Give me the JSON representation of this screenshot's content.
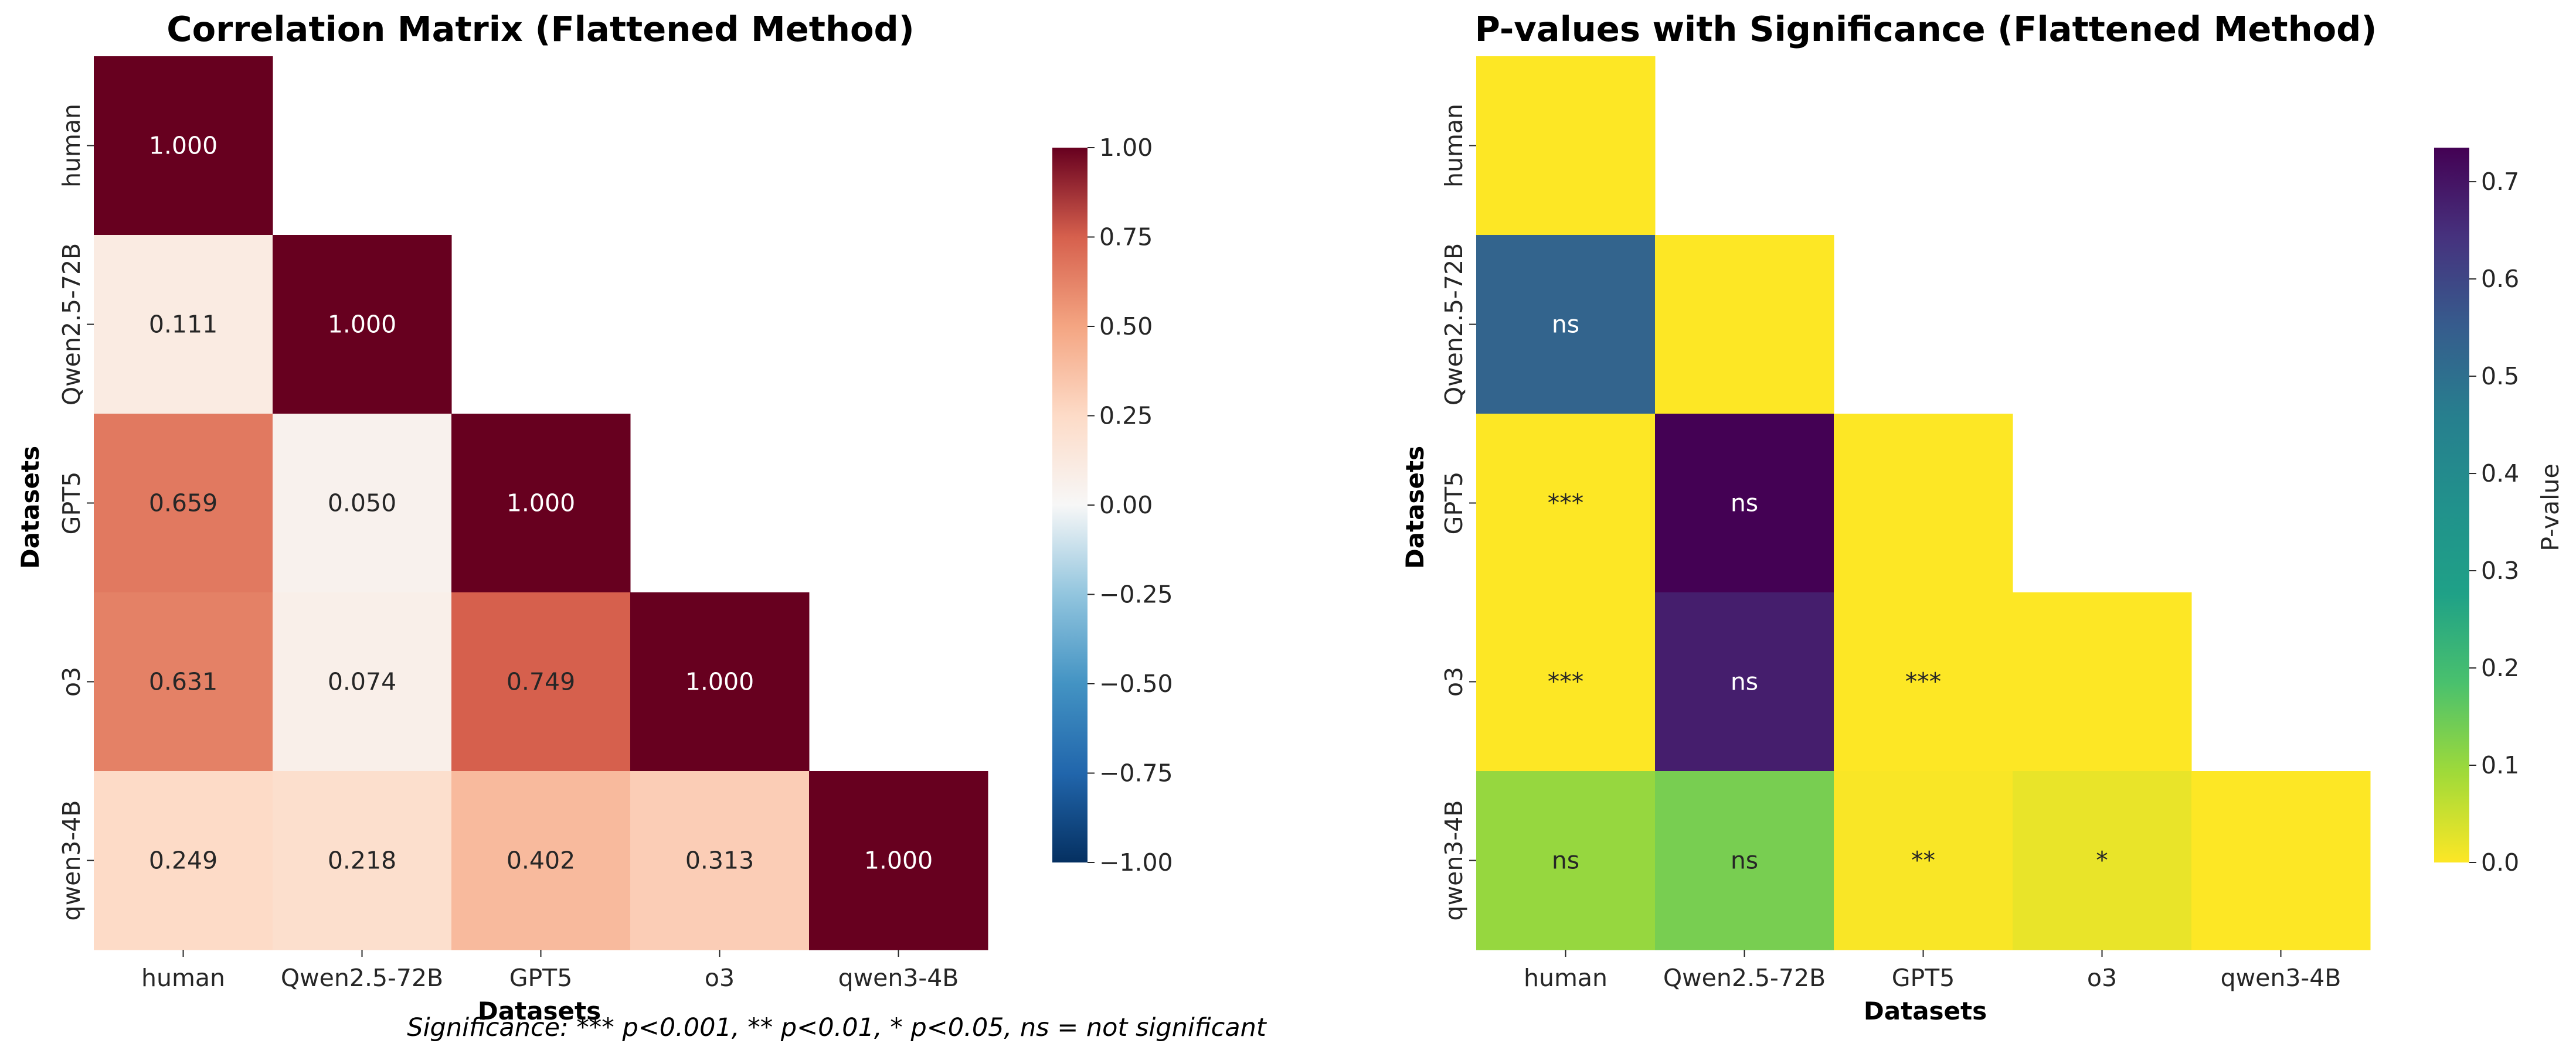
{
  "footnote": "Significance: *** p<0.001, ** p<0.01, * p<0.05, ns = not significant",
  "chart_data": [
    {
      "type": "heatmap",
      "title": "Correlation Matrix (Flattened Method)",
      "xlabel": "Datasets",
      "ylabel": "Datasets",
      "labels": [
        "human",
        "Qwen2.5-72B",
        "GPT5",
        "o3",
        "qwen3-4B"
      ],
      "mask": "upper-triangle",
      "values": [
        [
          1.0,
          null,
          null,
          null,
          null
        ],
        [
          0.111,
          1.0,
          null,
          null,
          null
        ],
        [
          0.659,
          0.05,
          1.0,
          null,
          null
        ],
        [
          0.631,
          0.074,
          0.749,
          1.0,
          null
        ],
        [
          0.249,
          0.218,
          0.402,
          0.313,
          1.0
        ]
      ],
      "cell_text": [
        [
          "1.000",
          "",
          "",
          "",
          ""
        ],
        [
          "0.111",
          "1.000",
          "",
          "",
          ""
        ],
        [
          "0.659",
          "0.050",
          "1.000",
          "",
          ""
        ],
        [
          "0.631",
          "0.074",
          "0.749",
          "1.000",
          ""
        ],
        [
          "0.249",
          "0.218",
          "0.402",
          "0.313",
          "1.000"
        ]
      ],
      "colormap": "RdBu_r",
      "colorbar": {
        "range": [
          -1,
          1
        ],
        "ticks": [
          1,
          0.75,
          0.5,
          0.25,
          0,
          -0.25,
          -0.5,
          -0.75,
          -1
        ],
        "tick_labels": [
          "1.00",
          "0.75",
          "0.50",
          "0.25",
          "0.00",
          "−0.25",
          "−0.50",
          "−0.75",
          "−1.00"
        ],
        "label": ""
      }
    },
    {
      "type": "heatmap",
      "title": "P-values with Significance (Flattened Method)",
      "xlabel": "Datasets",
      "ylabel": "Datasets",
      "labels": [
        "human",
        "Qwen2.5-72B",
        "GPT5",
        "o3",
        "qwen3-4B"
      ],
      "mask": "upper-triangle",
      "values": [
        [
          0.0,
          null,
          null,
          null,
          null
        ],
        [
          0.53,
          0.0,
          null,
          null,
          null
        ],
        [
          0.0,
          0.735,
          0.0,
          null,
          null
        ],
        [
          0.0,
          0.68,
          0.0,
          0.0,
          null
        ],
        [
          0.103,
          0.135,
          0.004,
          0.02,
          0.0
        ]
      ],
      "cell_text": [
        [
          "",
          "",
          "",
          "",
          ""
        ],
        [
          "ns",
          "",
          "",
          "",
          ""
        ],
        [
          "***",
          "ns",
          "",
          "",
          ""
        ],
        [
          "***",
          "ns",
          "***",
          "",
          ""
        ],
        [
          "ns",
          "ns",
          "**",
          "*",
          ""
        ]
      ],
      "colormap": "viridis_r",
      "colorbar": {
        "range": [
          0,
          0.735
        ],
        "ticks": [
          0.7,
          0.6,
          0.5,
          0.4,
          0.3,
          0.2,
          0.1,
          0.0
        ],
        "tick_labels": [
          "0.7",
          "0.6",
          "0.5",
          "0.4",
          "0.3",
          "0.2",
          "0.1",
          "0.0"
        ],
        "label": "P-value"
      }
    }
  ]
}
